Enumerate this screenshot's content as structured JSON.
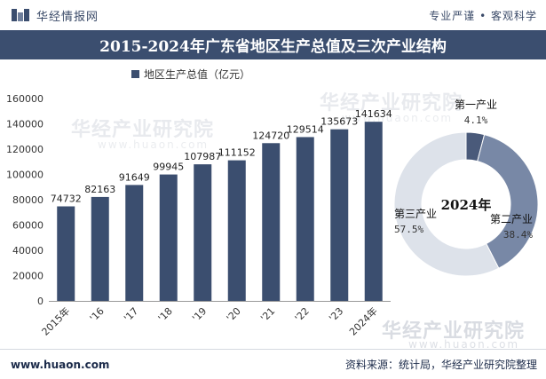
{
  "header": {
    "brand": "华经情报网",
    "slogan": "专业严谨 • 客观科学",
    "title": "2015-2024年广东省地区生产总值及三次产业结构"
  },
  "footer": {
    "site": "www.huaon.com",
    "source": "资料来源：统计局，华经产业研究院整理"
  },
  "watermark": {
    "name": "华经产业研究院",
    "url": "www.huaon.com"
  },
  "colors": {
    "bar": "#3b4e6f",
    "pie_primary": "#4a5a7a",
    "pie_secondary": "#7888a6",
    "pie_tertiary": "#dde2ea",
    "title_bg": "#3b4e6f"
  },
  "chart_data": [
    {
      "type": "bar",
      "legend": "地区生产总值（亿元）",
      "legend_position": "top-left",
      "categories": [
        "2015年",
        "'16",
        "'17",
        "'18",
        "'19",
        "'20",
        "'21",
        "'22",
        "'23",
        "2024年"
      ],
      "series": [
        {
          "name": "地区生产总值（亿元）",
          "values": [
            74732,
            82163,
            91649,
            99945,
            107987,
            111152,
            124720,
            129514,
            135673,
            141634
          ]
        }
      ],
      "ylim": [
        0,
        160000
      ],
      "yticks": [
        0,
        20000,
        40000,
        60000,
        80000,
        100000,
        120000,
        140000,
        160000
      ],
      "grid": false
    },
    {
      "type": "pie",
      "center_label": "2024年",
      "slices": [
        {
          "label": "第一产业",
          "value": 4.1,
          "display": "4.1%"
        },
        {
          "label": "第二产业",
          "value": 38.4,
          "display": "38.4%"
        },
        {
          "label": "第三产业",
          "value": 57.5,
          "display": "57.5%"
        }
      ]
    }
  ]
}
